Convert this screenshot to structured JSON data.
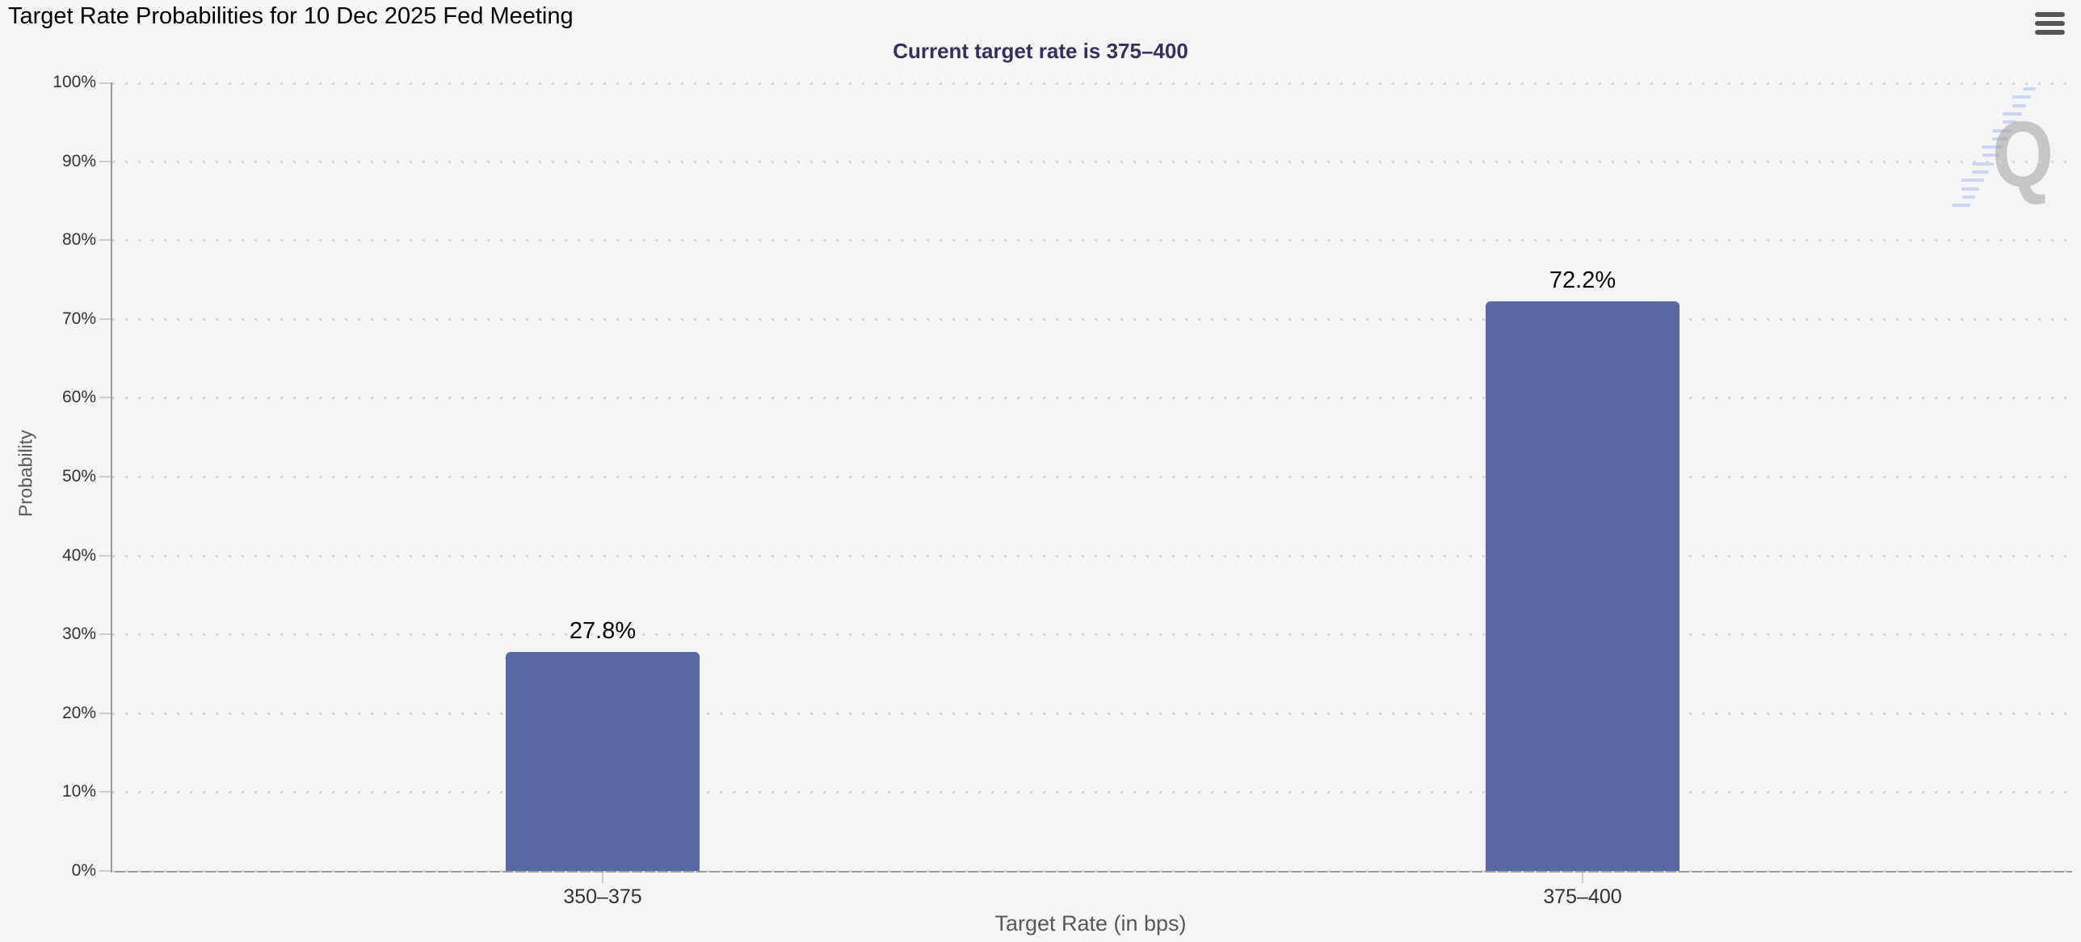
{
  "header": {
    "title": "Target Rate Probabilities for 10 Dec 2025 Fed Meeting",
    "menu_icon": "hamburger-menu-icon"
  },
  "subtitle": "Current target rate is 375–400",
  "chart_data": {
    "type": "bar",
    "title": "Target Rate Probabilities for 10 Dec 2025 Fed Meeting",
    "subtitle": "Current target rate is 375–400",
    "categories": [
      "350–375",
      "375–400"
    ],
    "values": [
      27.8,
      72.2
    ],
    "data_labels": [
      "27.8%",
      "72.2%"
    ],
    "xlabel": "Target Rate (in bps)",
    "ylabel": "Probability",
    "ylim": [
      0,
      100
    ],
    "ytick_step": 10,
    "ytick_suffix": "%",
    "grid": "dotted horizontal gridlines every 10%",
    "legend": "none",
    "bar_color": "#5869a5"
  },
  "watermark": {
    "letter": "Q"
  },
  "colors": {
    "background": "#f5f5f5",
    "bar_color": "#5869a5",
    "title_color": "#000000",
    "subtitle_color": "#32325c",
    "axis_line": "#9a9a9a",
    "tick_color": "#cccccc",
    "grid_color": "#d8d8d8",
    "axis_label": "#333333",
    "axis_title": "#595959",
    "menu_icon": "#555555",
    "watermark_q": "#a0a0a0",
    "watermark_dash": "#bdc9f3"
  }
}
